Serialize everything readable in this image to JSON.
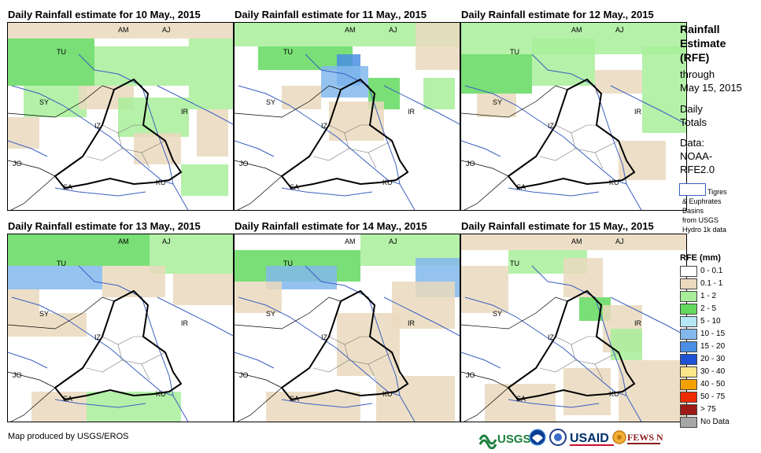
{
  "panels": [
    {
      "title": "Daily Rainfall estimate for 10 May., 2015"
    },
    {
      "title": "Daily Rainfall estimate for 11 May., 2015"
    },
    {
      "title": "Daily Rainfall estimate for 12 May., 2015"
    },
    {
      "title": "Daily Rainfall estimate for 13 May., 2015"
    },
    {
      "title": "Daily Rainfall estimate for 14 May., 2015"
    },
    {
      "title": "Daily Rainfall estimate for 15 May., 2015"
    }
  ],
  "country_labels": [
    "AM",
    "AJ",
    "TU",
    "SY",
    "IR",
    "IZ",
    "JO",
    "SA",
    "KU"
  ],
  "sidebar": {
    "title_lines": [
      "Rainfall",
      "Estimate",
      "(RFE)"
    ],
    "through_lines": [
      "through",
      "May 15, 2015"
    ],
    "daily_lines": [
      "Daily",
      "Totals"
    ],
    "data_lines": [
      "Data:",
      "NOAA-",
      "RFE2.0"
    ],
    "basin_lines": [
      "Tigres",
      "& Euphrates",
      "Basins",
      "from USGS",
      "Hydro 1k data"
    ]
  },
  "legend": {
    "title": "RFE (mm)",
    "items": [
      {
        "label": "0 - 0.1",
        "color": "#ffffff"
      },
      {
        "label": "0.1 - 1",
        "color": "#ead9bd"
      },
      {
        "label": "1 - 2",
        "color": "#a8ee9a"
      },
      {
        "label": "2 - 5",
        "color": "#63d95e"
      },
      {
        "label": "5 - 10",
        "color": "#b5e8f7"
      },
      {
        "label": "10 - 15",
        "color": "#82b8ec"
      },
      {
        "label": "15 - 20",
        "color": "#4a8fe3"
      },
      {
        "label": "20 - 30",
        "color": "#1f52d4"
      },
      {
        "label": "30 - 40",
        "color": "#fde68a"
      },
      {
        "label": "40 - 50",
        "color": "#f4a000"
      },
      {
        "label": "50 - 75",
        "color": "#ee2a00"
      },
      {
        "label": "> 75",
        "color": "#9c1b16"
      },
      {
        "label": "No Data",
        "color": "#a6a6a6"
      }
    ]
  },
  "credit": "Map produced by USGS/EROS",
  "logos": {
    "usgs": "USGS",
    "usaid": "USAID",
    "fewsnet": "FEWS NET"
  },
  "colors": {
    "border": "#000000",
    "river": "#3b5fc0",
    "admin": "#777777"
  }
}
